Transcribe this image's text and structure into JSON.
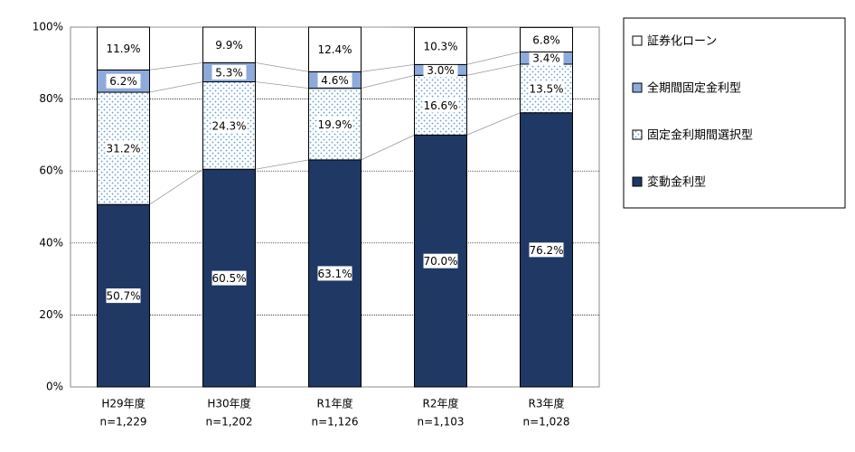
{
  "chart_data": {
    "type": "stacked_bar",
    "categories": [
      "H29年度",
      "H30年度",
      "R1年度",
      "R2年度",
      "R3年度"
    ],
    "category_notes": [
      "n=1,229",
      "n=1,202",
      "n=1,126",
      "n=1,103",
      "n=1,028"
    ],
    "series": [
      {
        "name": "変動金利型",
        "color": "#1f3864",
        "values": [
          50.7,
          60.5,
          63.1,
          70.0,
          76.2
        ],
        "value_labels": [
          "50.7%",
          "60.5%",
          "63.1%",
          "70.0%",
          "76.2%"
        ]
      },
      {
        "name": "固定金利期間選択型",
        "color": "#5b9bd5",
        "pattern": "dots",
        "values": [
          31.2,
          24.3,
          19.9,
          16.6,
          13.5
        ],
        "value_labels": [
          "31.2%",
          "24.3%",
          "19.9%",
          "16.6%",
          "13.5%"
        ]
      },
      {
        "name": "全期間固定金利型",
        "color": "#8eaadb",
        "values": [
          6.2,
          5.3,
          4.6,
          3.0,
          3.4
        ],
        "value_labels": [
          "6.2%",
          "5.3%",
          "4.6%",
          "3.0%",
          "3.4%"
        ]
      },
      {
        "name": "証券化ローン",
        "color": "#ffffff",
        "values": [
          11.9,
          9.9,
          12.4,
          10.3,
          6.8
        ],
        "value_labels": [
          "11.9%",
          "9.9%",
          "12.4%",
          "10.3%",
          "6.8%"
        ]
      }
    ],
    "ylim": [
      0,
      100
    ],
    "yticks": [
      {
        "value": 0,
        "label": "0%"
      },
      {
        "value": 20,
        "label": "20%"
      },
      {
        "value": 40,
        "label": "40%"
      },
      {
        "value": 60,
        "label": "60%"
      },
      {
        "value": 80,
        "label": "80%"
      },
      {
        "value": 100,
        "label": "100%"
      }
    ],
    "grid": true,
    "legend": "right"
  }
}
